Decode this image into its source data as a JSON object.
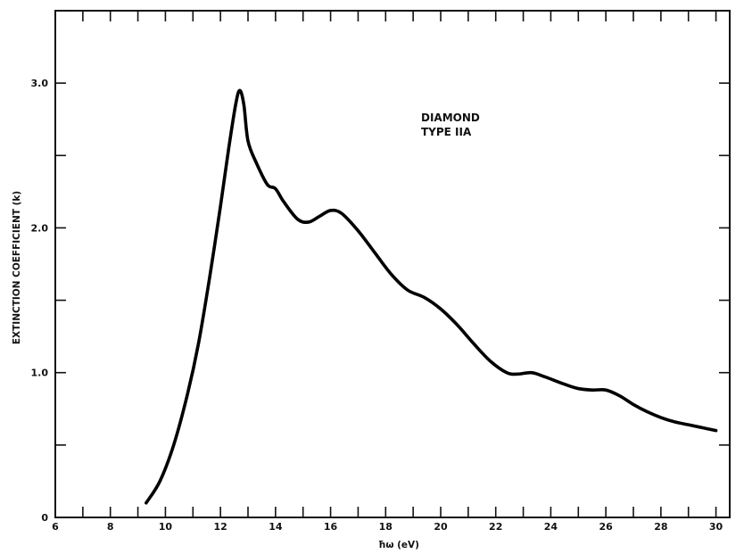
{
  "chart_data": {
    "type": "line",
    "title": "",
    "xlabel": "ħω (eV)",
    "ylabel": "EXTINCTION COEFFICIENT (k)",
    "xlim": [
      6,
      30.5
    ],
    "ylim": [
      0,
      3.5
    ],
    "x_ticks": [
      6,
      8,
      10,
      12,
      14,
      16,
      18,
      20,
      22,
      24,
      26,
      28,
      30
    ],
    "x_tick_labels": [
      "6",
      "8",
      "10",
      "12",
      "14",
      "16",
      "18",
      "20",
      "22",
      "24",
      "26",
      "28",
      "30"
    ],
    "y_ticks": [
      0,
      1.0,
      2.0,
      3.0
    ],
    "y_tick_labels": [
      "0",
      "1.0",
      "2.0",
      "3.0"
    ],
    "y_minor_ticks": [
      0.5,
      1.5,
      2.5,
      3.5
    ],
    "grid": false,
    "annotations": [
      "DIAMOND",
      "TYPE IIA"
    ],
    "series": [
      {
        "name": "",
        "color": "#000000",
        "x": [
          9.3,
          9.8,
          10.3,
          10.8,
          11.2,
          11.6,
          12.0,
          12.3,
          12.55,
          12.7,
          12.85,
          13.0,
          13.3,
          13.7,
          14.0,
          14.3,
          14.8,
          15.2,
          15.6,
          16.0,
          16.4,
          17.0,
          17.6,
          18.2,
          18.8,
          19.4,
          20.0,
          20.6,
          21.2,
          21.8,
          22.4,
          22.8,
          23.3,
          23.8,
          24.5,
          25.0,
          25.5,
          26.0,
          26.5,
          27.0,
          27.5,
          28.0,
          28.5,
          29.0,
          29.5,
          30.0
        ],
        "y": [
          0.1,
          0.25,
          0.5,
          0.85,
          1.2,
          1.65,
          2.15,
          2.55,
          2.85,
          2.95,
          2.85,
          2.6,
          2.45,
          2.3,
          2.27,
          2.18,
          2.06,
          2.04,
          2.08,
          2.12,
          2.1,
          1.98,
          1.83,
          1.68,
          1.57,
          1.52,
          1.44,
          1.33,
          1.2,
          1.08,
          1.0,
          0.99,
          1.0,
          0.97,
          0.92,
          0.89,
          0.88,
          0.88,
          0.84,
          0.78,
          0.73,
          0.69,
          0.66,
          0.64,
          0.62,
          0.6
        ]
      }
    ]
  }
}
